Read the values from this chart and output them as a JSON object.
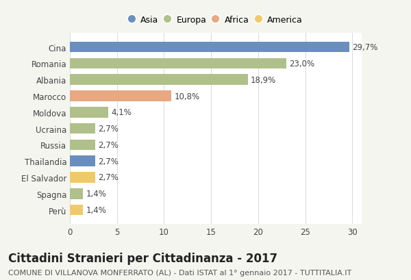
{
  "countries": [
    "Cina",
    "Romania",
    "Albania",
    "Marocco",
    "Moldova",
    "Ucraina",
    "Russia",
    "Thailandia",
    "El Salvador",
    "Spagna",
    "Perù"
  ],
  "values": [
    29.7,
    23.0,
    18.9,
    10.8,
    4.1,
    2.7,
    2.7,
    2.7,
    2.7,
    1.4,
    1.4
  ],
  "labels": [
    "29,7%",
    "23,0%",
    "18,9%",
    "10,8%",
    "4,1%",
    "2,7%",
    "2,7%",
    "2,7%",
    "2,7%",
    "1,4%",
    "1,4%"
  ],
  "colors": [
    "#6a8fbf",
    "#afc08a",
    "#afc08a",
    "#e8a882",
    "#afc08a",
    "#afc08a",
    "#afc08a",
    "#6a8fbf",
    "#f0c96a",
    "#afc08a",
    "#f0c96a"
  ],
  "legend": {
    "labels": [
      "Asia",
      "Europa",
      "Africa",
      "America"
    ],
    "colors": [
      "#6a8fbf",
      "#afc08a",
      "#e8a882",
      "#f0c96a"
    ]
  },
  "xlim": [
    0,
    31
  ],
  "xticks": [
    0,
    5,
    10,
    15,
    20,
    25,
    30
  ],
  "title": "Cittadini Stranieri per Cittadinanza - 2017",
  "subtitle": "COMUNE DI VILLANOVA MONFERRATO (AL) - Dati ISTAT al 1° gennaio 2017 - TUTTITALIA.IT",
  "bg_color": "#f5f5f0",
  "bar_bg_color": "#ffffff",
  "grid_color": "#dddddd",
  "title_fontsize": 12,
  "subtitle_fontsize": 8,
  "label_fontsize": 8.5,
  "tick_fontsize": 8.5
}
